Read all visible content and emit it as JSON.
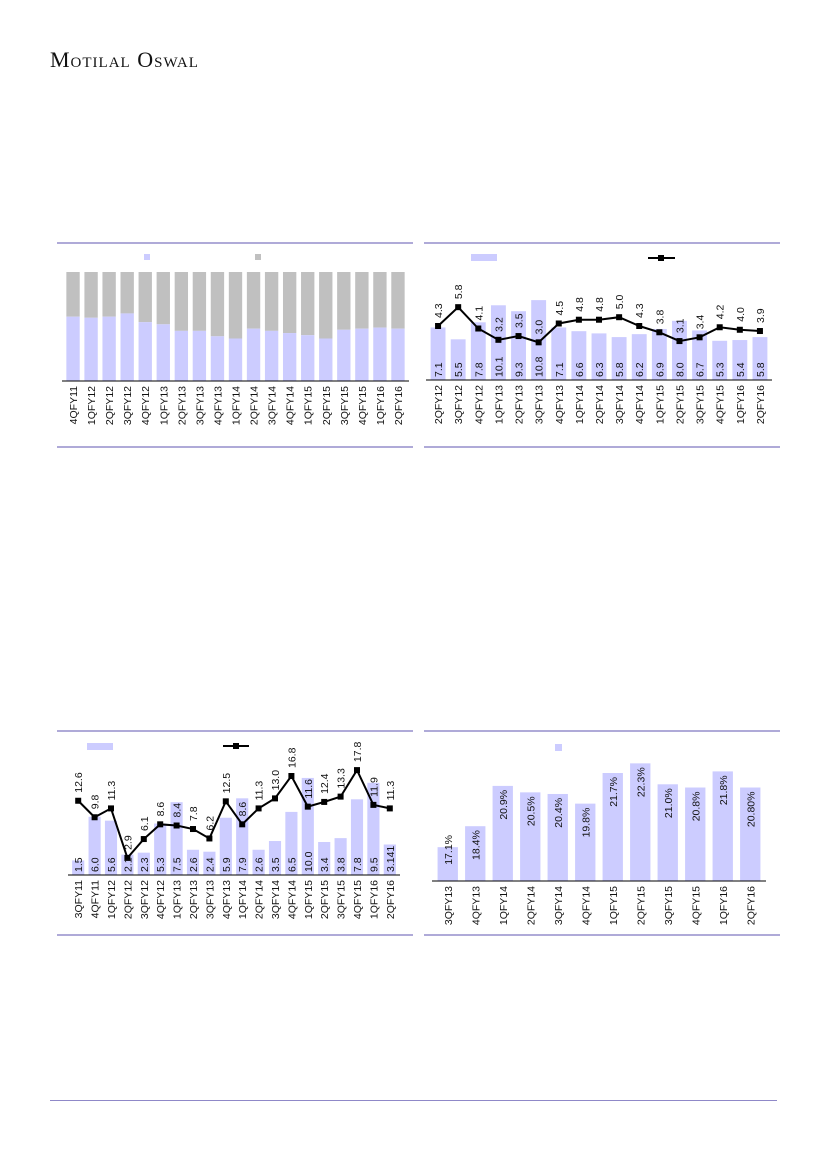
{
  "header": {
    "logo_text": "Motilal Oswal"
  },
  "colors": {
    "bar": "#ccccff",
    "bar2": "#c0c0c0",
    "line": "#000000",
    "rule": "#7f78c0"
  },
  "chart_data": [
    {
      "type": "bar",
      "stacked": true,
      "percent": true,
      "categories": [
        "4QFY11",
        "1QFY12",
        "2QFY12",
        "3QFY12",
        "4QFY12",
        "1QFY13",
        "2QFY13",
        "3QFY13",
        "4QFY13",
        "1QFY14",
        "2QFY14",
        "3QFY14",
        "4QFY14",
        "1QFY15",
        "2QFY15",
        "3QFY15",
        "4QFY15",
        "1QFY16",
        "2QFY16"
      ],
      "series": [
        {
          "name": "",
          "values": [
            59,
            58,
            59,
            62,
            54,
            52,
            46,
            46,
            41,
            39,
            48,
            46,
            44,
            42,
            39,
            47,
            48,
            49,
            48
          ]
        },
        {
          "name": "",
          "values": [
            41,
            42,
            41,
            38,
            46,
            48,
            54,
            54,
            59,
            61,
            52,
            54,
            56,
            58,
            61,
            53,
            52,
            51,
            52
          ]
        }
      ],
      "ylim": [
        0,
        100
      ],
      "legend": "top-center"
    },
    {
      "type": "bar+line",
      "categories": [
        "2QFY12",
        "3QFY12",
        "4QFY12",
        "1QFY13",
        "2QFY13",
        "3QFY13",
        "4QFY13",
        "1QFY14",
        "2QFY14",
        "3QFY14",
        "4QFY14",
        "1QFY15",
        "2QFY15",
        "3QFY15",
        "4QFY15",
        "1QFY16",
        "2QFY16"
      ],
      "bars": {
        "values": [
          7.1,
          5.5,
          7.8,
          10.1,
          9.3,
          10.8,
          7.1,
          6.6,
          6.3,
          5.8,
          6.2,
          6.9,
          8.0,
          6.7,
          5.3,
          5.4,
          5.8
        ],
        "labels": [
          "7.1",
          "5.5",
          "7.8",
          "10.1",
          "9.3",
          "10.8",
          "7.1",
          "6.6",
          "6.3",
          "5.8",
          "6.2",
          "6.9",
          "8.0",
          "6.7",
          "5.3",
          "5.4",
          "5.8"
        ],
        "ylim": [
          0,
          14.6
        ]
      },
      "line": {
        "values": [
          4.3,
          5.8,
          4.1,
          3.2,
          3.5,
          3.0,
          4.5,
          4.8,
          4.8,
          5.0,
          4.3,
          3.8,
          3.1,
          3.4,
          4.2,
          4.0,
          3.9
        ],
        "labels": [
          "4.3",
          "5.8",
          "4.1",
          "3.2",
          "3.5",
          "3.0",
          "4.5",
          "4.8",
          "4.8",
          "5.0",
          "4.3",
          "3.8",
          "3.1",
          "3.4",
          "4.2",
          "4.0",
          "3.9"
        ],
        "ylim": [
          0,
          8.6
        ]
      },
      "legend": "top"
    },
    {
      "type": "bar+line",
      "categories": [
        "3QFY11",
        "4QFY11",
        "1QFY12",
        "2QFY12",
        "3QFY12",
        "4QFY12",
        "1QFY13",
        "2QFY13",
        "3QFY13",
        "4QFY13",
        "1QFY14",
        "2QFY14",
        "3QFY14",
        "4QFY14",
        "1QFY15",
        "2QFY15",
        "3QFY15",
        "4QFY15",
        "1QFY16",
        "2QFY16"
      ],
      "bars": {
        "values": [
          1.5,
          6.0,
          5.6,
          2.1,
          2.3,
          5.3,
          7.5,
          2.6,
          2.4,
          5.9,
          7.9,
          2.6,
          3.5,
          6.5,
          10.0,
          3.4,
          3.8,
          7.8,
          9.5,
          3.141
        ],
        "labels": [
          "1.5",
          "6.0",
          "5.6",
          "2.1",
          "2.3",
          "5.3",
          "7.5",
          "2.6",
          "2.4",
          "5.9",
          "7.9",
          "2.6",
          "3.5",
          "6.5",
          "10.0",
          "3.4",
          "3.8",
          "7.8",
          "9.5",
          "3.141"
        ],
        "ylim": [
          0,
          13.6
        ]
      },
      "line": {
        "values": [
          12.6,
          9.8,
          11.3,
          2.9,
          6.1,
          8.6,
          8.4,
          7.8,
          6.2,
          12.5,
          8.6,
          11.3,
          13.0,
          16.8,
          11.6,
          12.4,
          13.3,
          17.8,
          11.9,
          11.3
        ],
        "labels": [
          "12.6",
          "9.8",
          "11.3",
          "2.9",
          "6.1",
          "8.6",
          "8.4",
          "7.8",
          "6.2",
          "12.5",
          "8.6",
          "11.3",
          "13.0",
          "16.8",
          "11.6",
          "12.4",
          "13.3",
          "17.8",
          "11.9",
          "11.3"
        ],
        "ylim": [
          0,
          22.4
        ]
      },
      "legend": "top"
    },
    {
      "type": "bar",
      "categories": [
        "3QFY13",
        "4QFY13",
        "1QFY14",
        "2QFY14",
        "3QFY14",
        "4QFY14",
        "1QFY15",
        "2QFY15",
        "3QFY15",
        "4QFY15",
        "1QFY16",
        "2QFY16"
      ],
      "values": [
        17.1,
        18.4,
        20.9,
        20.5,
        20.4,
        19.8,
        21.7,
        22.3,
        21.0,
        20.8,
        21.8,
        20.8
      ],
      "labels": [
        "17.1%",
        "18.4%",
        "20.9%",
        "20.5%",
        "20.4%",
        "19.8%",
        "21.7%",
        "22.3%",
        "21.0%",
        "20.8%",
        "21.8%",
        "20.80%"
      ],
      "ylim": [
        15,
        23.5
      ],
      "legend": "top-center"
    }
  ]
}
